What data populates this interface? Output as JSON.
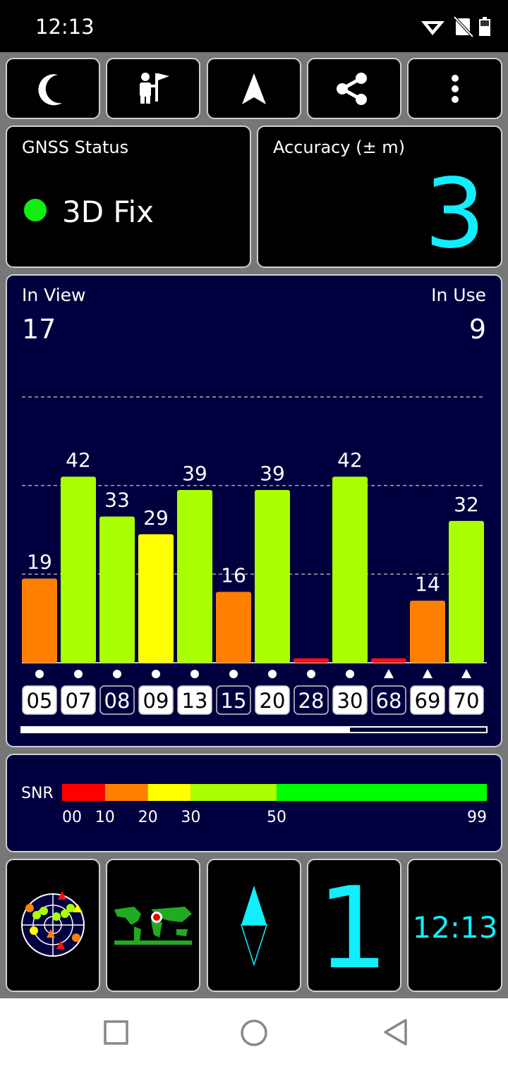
{
  "status_bar": {
    "time": "12:13"
  },
  "gnss_status": {
    "title": "GNSS Status",
    "value": "3D Fix",
    "indicator_color": "#11ee11"
  },
  "accuracy": {
    "title": "Accuracy (± m)",
    "value": 3,
    "color": "#11eeff"
  },
  "satellites": {
    "in_view_label": "In View",
    "in_view": 17,
    "in_use_label": "In Use",
    "in_use": 9,
    "chart_data": {
      "type": "bar",
      "categories": [
        "05",
        "07",
        "08",
        "09",
        "13",
        "15",
        "20",
        "28",
        "30",
        "68",
        "69",
        "70"
      ],
      "values": [
        19,
        42,
        33,
        29,
        39,
        16,
        39,
        1,
        42,
        1,
        14,
        32
      ],
      "value_labels": [
        "19",
        "42",
        "33",
        "29",
        "39",
        "16",
        "39",
        null,
        "42",
        null,
        "14",
        "32"
      ],
      "colors": [
        "#ff8000",
        "#aaff00",
        "#aaff00",
        "#ffff00",
        "#aaff00",
        "#ff8000",
        "#aaff00",
        "#ff1010",
        "#aaff00",
        "#ff1010",
        "#ff8000",
        "#aaff00"
      ],
      "symbols": [
        "circle",
        "circle",
        "circle",
        "circle",
        "circle",
        "circle",
        "circle",
        "circle",
        "circle",
        "triangle",
        "triangle",
        "triangle"
      ],
      "in_use": [
        true,
        true,
        false,
        true,
        true,
        false,
        true,
        false,
        true,
        false,
        true,
        true
      ],
      "ylim": [
        0,
        60
      ],
      "yticks": [
        20,
        40,
        60
      ],
      "grid": true
    }
  },
  "snr_legend": {
    "label": "SNR",
    "xlim": [
      0,
      99
    ],
    "ticks": [
      {
        "value": 0,
        "label": "00"
      },
      10,
      20,
      30,
      50,
      99
    ],
    "segments": [
      {
        "from": 0,
        "to": 10,
        "color": "#ff0000"
      },
      {
        "from": 10,
        "to": 20,
        "color": "#ff8000"
      },
      {
        "from": 20,
        "to": 30,
        "color": "#ffff00"
      },
      {
        "from": 30,
        "to": 50,
        "color": "#aaff00"
      },
      {
        "from": 50,
        "to": 99,
        "color": "#00ff00"
      }
    ]
  },
  "tiles": {
    "satellite_count": 1,
    "clock": "12:13",
    "color": "#11eeff"
  }
}
